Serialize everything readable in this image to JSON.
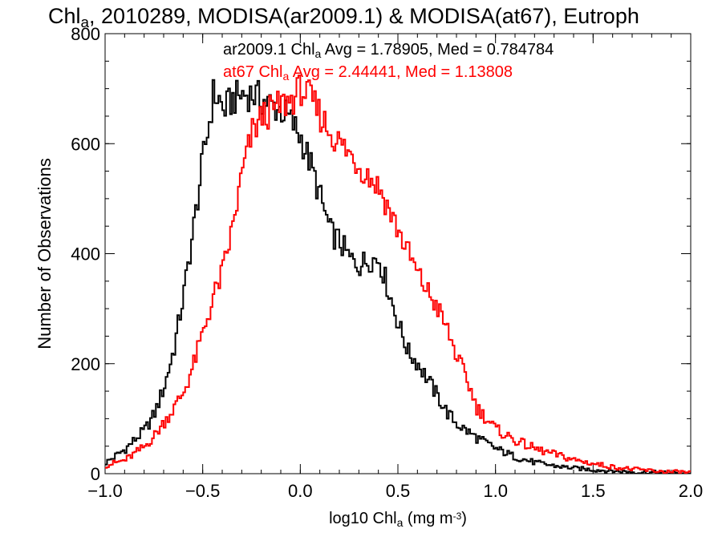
{
  "chart_data": {
    "type": "histogram-step",
    "title_parts": [
      "Chl",
      "a",
      ", 2010289, MODISA(ar2009.1) & MODISA(at67), Eutroph"
    ],
    "xlabel_parts": [
      "log10 Chl",
      "a",
      " (mg m",
      "-3",
      ")"
    ],
    "ylabel": "Number of Observations",
    "xlim": [
      -1.0,
      2.0
    ],
    "ylim": [
      0,
      800
    ],
    "xticks": [
      -1.0,
      -0.5,
      0.0,
      0.5,
      1.0,
      1.5,
      2.0
    ],
    "xtick_labels": [
      "−1.0",
      "−0.5",
      "0.0",
      "0.5",
      "1.0",
      "1.5",
      "2.0"
    ],
    "yticks": [
      0,
      200,
      400,
      600,
      800
    ],
    "ytick_labels": [
      "0",
      "200",
      "400",
      "600",
      "800"
    ],
    "bin_width": 0.01,
    "annotations": [
      {
        "parts": [
          "ar2009.1 Chl",
          "a",
          " Avg = 1.78905, Med = 0.784784"
        ],
        "color": "#000000"
      },
      {
        "parts": [
          "at67 Chl",
          "a",
          " Avg = 2.44441, Med = 1.13808"
        ],
        "color": "#ff0000"
      }
    ],
    "series": [
      {
        "color": "#000000",
        "x": [
          -1.0,
          -0.9,
          -0.8,
          -0.75,
          -0.7,
          -0.65,
          -0.6,
          -0.55,
          -0.5,
          -0.47,
          -0.45,
          -0.42,
          -0.4,
          -0.35,
          -0.3,
          -0.25,
          -0.2,
          -0.15,
          -0.1,
          -0.05,
          0.0,
          0.05,
          0.1,
          0.15,
          0.2,
          0.25,
          0.3,
          0.35,
          0.4,
          0.45,
          0.5,
          0.55,
          0.6,
          0.65,
          0.7,
          0.75,
          0.8,
          0.9,
          1.0,
          1.1,
          1.2,
          1.3,
          1.4,
          1.5,
          1.6,
          1.7,
          1.8,
          1.9,
          2.0
        ],
        "y": [
          20,
          45,
          80,
          110,
          160,
          230,
          330,
          450,
          580,
          640,
          690,
          680,
          660,
          680,
          690,
          690,
          680,
          670,
          660,
          640,
          610,
          560,
          500,
          440,
          420,
          390,
          380,
          390,
          390,
          330,
          270,
          220,
          200,
          170,
          140,
          110,
          90,
          65,
          45,
          30,
          20,
          14,
          10,
          7,
          5,
          3,
          2,
          1,
          0
        ]
      },
      {
        "color": "#ff0000",
        "x": [
          -1.0,
          -0.9,
          -0.8,
          -0.75,
          -0.7,
          -0.65,
          -0.6,
          -0.55,
          -0.5,
          -0.45,
          -0.4,
          -0.35,
          -0.3,
          -0.25,
          -0.2,
          -0.15,
          -0.1,
          -0.05,
          0.0,
          0.05,
          0.1,
          0.15,
          0.2,
          0.25,
          0.3,
          0.35,
          0.4,
          0.45,
          0.5,
          0.55,
          0.6,
          0.65,
          0.7,
          0.75,
          0.8,
          0.85,
          0.9,
          1.0,
          1.1,
          1.2,
          1.3,
          1.4,
          1.5,
          1.6,
          1.7,
          1.8,
          1.9,
          2.0
        ],
        "y": [
          15,
          25,
          50,
          70,
          95,
          120,
          150,
          200,
          260,
          320,
          370,
          450,
          550,
          620,
          650,
          660,
          670,
          680,
          700,
          680,
          650,
          620,
          600,
          580,
          560,
          540,
          520,
          480,
          440,
          400,
          360,
          330,
          300,
          260,
          210,
          170,
          120,
          80,
          60,
          45,
          35,
          25,
          18,
          12,
          8,
          5,
          3,
          2
        ]
      }
    ]
  }
}
